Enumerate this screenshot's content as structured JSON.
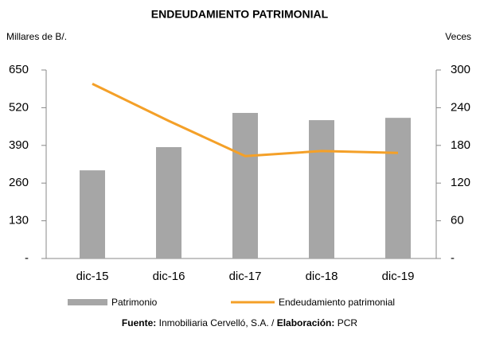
{
  "chart_data": {
    "type": "bar_line",
    "title": "ENDEUDAMIENTO PATRIMONIAL",
    "y_label": "Millares de B/.",
    "y2_label": "Veces",
    "categories": [
      "dic-15",
      "dic-16",
      "dic-17",
      "dic-18",
      "dic-19"
    ],
    "series": [
      {
        "name": "Patrimonio",
        "color": "#a6a6a6",
        "type": "bar",
        "values": [
          304,
          384,
          502,
          477,
          485
        ]
      },
      {
        "name": "Endeudamiento patrimonial",
        "color": "#f4a028",
        "type": "line",
        "axis": "y2",
        "values": [
          278,
          219,
          163,
          171,
          168
        ]
      }
    ],
    "ylim": [
      0,
      650
    ],
    "yticks": [
      {
        "value": 0,
        "label": "-"
      },
      130,
      260,
      390,
      520,
      650
    ],
    "y2lim": [
      0,
      300
    ],
    "y2ticks": [
      {
        "value": 0,
        "label": "-"
      },
      60,
      120,
      180,
      240,
      300
    ],
    "source": {
      "label1": "Fuente:",
      "text1": "Inmobiliaria Cervelló, S.A. /",
      "label2": "Elaboración:",
      "text2": "PCR"
    }
  }
}
